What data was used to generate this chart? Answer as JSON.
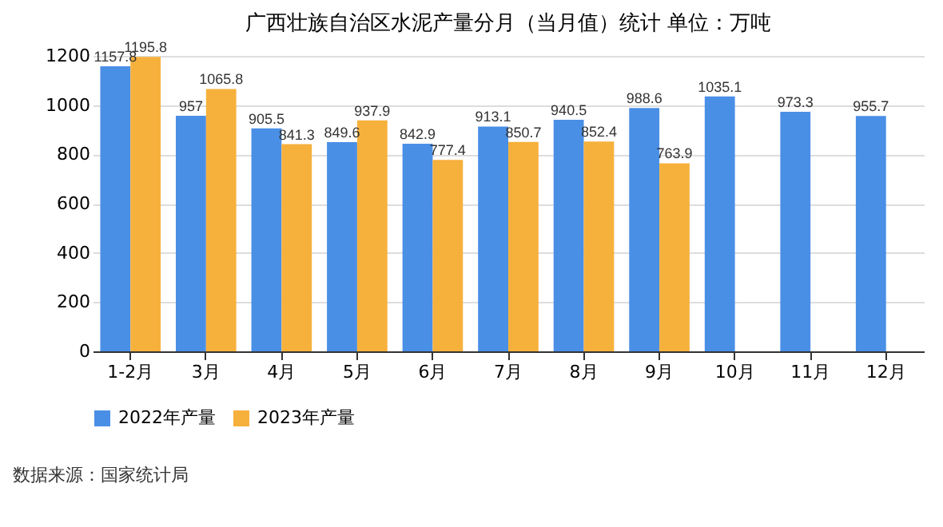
{
  "chart_data": {
    "type": "bar",
    "title": "广西壮族自治区水泥产量分月（当月值）统计 单位：万吨",
    "categories": [
      "1-2月",
      "3月",
      "4月",
      "5月",
      "6月",
      "7月",
      "8月",
      "9月",
      "10月",
      "11月",
      "12月"
    ],
    "series": [
      {
        "name": "2022年产量",
        "color": "#4a8fe6",
        "values": [
          1157.8,
          957,
          905.5,
          849.6,
          842.9,
          913.1,
          940.5,
          988.6,
          1035.1,
          973.3,
          955.7
        ]
      },
      {
        "name": "2023年产量",
        "color": "#f6b13c",
        "values": [
          1195.8,
          1065.8,
          841.3,
          937.9,
          777.4,
          850.7,
          852.4,
          763.9,
          null,
          null,
          null
        ]
      }
    ],
    "ylim": [
      0,
      1200
    ],
    "yticks": [
      0,
      200,
      400,
      600,
      800,
      1000,
      1200
    ],
    "grid": "y",
    "legend": "bottom",
    "data_labels": true,
    "annotations": [
      "数据来源：国家统计局"
    ]
  }
}
